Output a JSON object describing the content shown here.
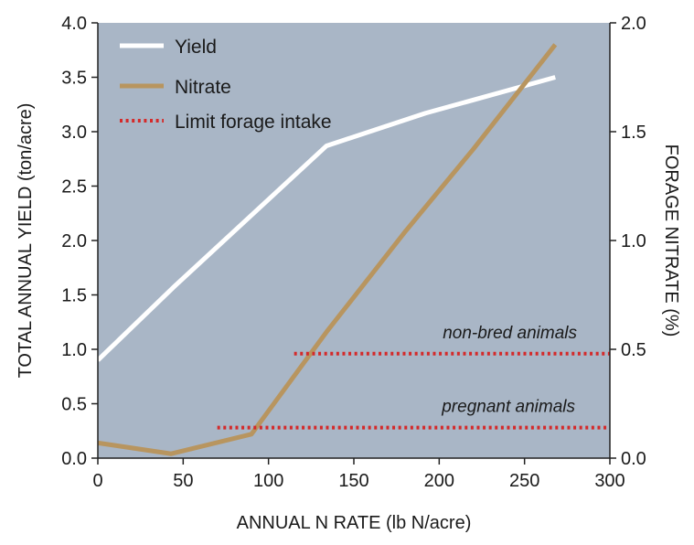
{
  "chart_data": {
    "type": "line",
    "xlabel": "ANNUAL N RATE (lb N/acre)",
    "ylabel": "TOTAL ANNUAL YIELD (ton/acre)",
    "y2label": "FORAGE NITRATE (%)",
    "xlim": [
      0,
      300
    ],
    "ylim": [
      0,
      4
    ],
    "y2lim": [
      0,
      2
    ],
    "xticks": [
      "0",
      "50",
      "100",
      "150",
      "200",
      "250",
      "300"
    ],
    "xtick_values": [
      0,
      50,
      100,
      150,
      200,
      250,
      300
    ],
    "yticks": [
      "0.0",
      "0.5",
      "1.0",
      "1.5",
      "2.0",
      "2.5",
      "3.0",
      "3.5",
      "4.0"
    ],
    "ytick_values": [
      0,
      0.5,
      1,
      1.5,
      2,
      2.5,
      3,
      3.5,
      4
    ],
    "y2ticks": [
      "0.0",
      "0.5",
      "1.0",
      "1.5",
      "2.0"
    ],
    "y2tick_values": [
      0,
      0.5,
      1,
      1.5,
      2
    ],
    "grid": false,
    "legend_position": "top-left",
    "series": [
      {
        "name": "Yield",
        "axis": "left",
        "color": "#ffffff",
        "style": "solid",
        "x": [
          0,
          45,
          134,
          192,
          268
        ],
        "y": [
          0.9,
          1.58,
          2.87,
          3.17,
          3.5
        ]
      },
      {
        "name": "Nitrate",
        "axis": "right",
        "color": "#b8955f",
        "style": "solid",
        "x": [
          0,
          43,
          90,
          134,
          180,
          220,
          268
        ],
        "y": [
          0.07,
          0.02,
          0.11,
          0.58,
          1.04,
          1.42,
          1.9
        ]
      },
      {
        "name": "Limit forage intake",
        "axis": "right",
        "color": "#d42a2a",
        "style": "dotted",
        "segments": [
          {
            "label": "non-bred animals",
            "x": [
              115,
              300
            ],
            "y": [
              0.48,
              0.48
            ]
          },
          {
            "label": "pregnant animals",
            "x": [
              70,
              300
            ],
            "y": [
              0.14,
              0.14
            ]
          }
        ]
      }
    ],
    "plot_bg_color": "#a9b6c6"
  }
}
